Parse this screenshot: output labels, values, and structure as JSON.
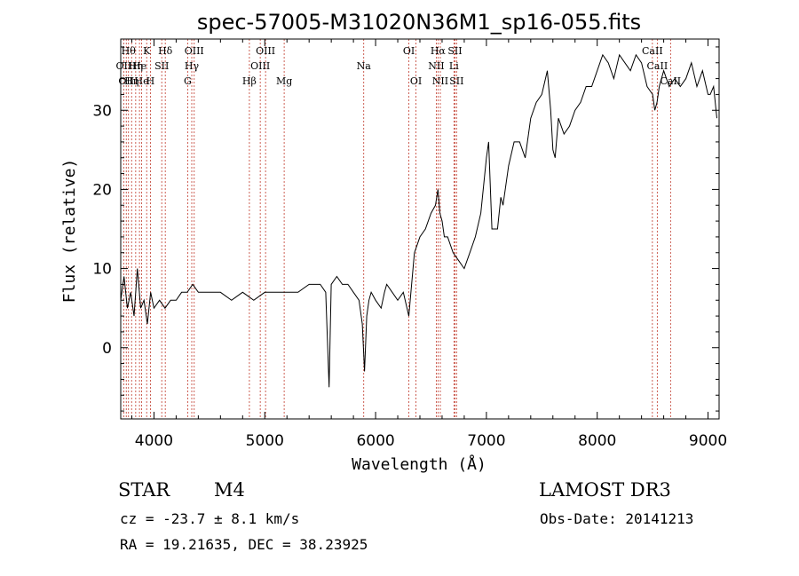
{
  "chart_data": {
    "type": "line",
    "title": "spec-57005-M31020N36M1_sp16-055.fits",
    "xlabel": "Wavelength (Å)",
    "ylabel": "Flux (relative)",
    "xlim": [
      3700,
      9100
    ],
    "ylim": [
      -9,
      39
    ],
    "xticks": [
      4000,
      5000,
      6000,
      7000,
      8000,
      9000
    ],
    "yticks": [
      0,
      10,
      20,
      30
    ],
    "grid": false,
    "series": [
      {
        "x": [
          3700,
          3730,
          3760,
          3790,
          3820,
          3850,
          3880,
          3910,
          3940,
          3970,
          4000,
          4050,
          4100,
          4150,
          4200,
          4250,
          4300,
          4350,
          4400,
          4450,
          4500,
          4600,
          4700,
          4800,
          4900,
          5000,
          5100,
          5200,
          5300,
          5400,
          5500,
          5550,
          5580,
          5600,
          5650,
          5700,
          5750,
          5800,
          5850,
          5880,
          5900,
          5920,
          5940,
          5960,
          6000,
          6050,
          6080,
          6100,
          6150,
          6200,
          6250,
          6300,
          6350,
          6400,
          6450,
          6500,
          6540,
          6563,
          6580,
          6600,
          6620,
          6650,
          6700,
          6750,
          6800,
          6850,
          6900,
          6950,
          7000,
          7020,
          7050,
          7100,
          7130,
          7150,
          7200,
          7250,
          7300,
          7350,
          7400,
          7450,
          7500,
          7550,
          7580,
          7600,
          7620,
          7650,
          7700,
          7750,
          7800,
          7850,
          7900,
          7950,
          8000,
          8050,
          8100,
          8150,
          8200,
          8250,
          8300,
          8350,
          8400,
          8450,
          8500,
          8520,
          8540,
          8560,
          8600,
          8650,
          8700,
          8750,
          8800,
          8850,
          8900,
          8950,
          9000,
          9020,
          9050,
          9080
        ],
        "y": [
          6,
          9,
          5,
          7,
          4,
          10,
          5,
          6,
          3,
          7,
          5,
          6,
          5,
          6,
          6,
          7,
          7,
          8,
          7,
          7,
          7,
          7,
          6,
          7,
          6,
          7,
          7,
          7,
          7,
          8,
          8,
          7,
          -5,
          8,
          9,
          8,
          8,
          7,
          6,
          3,
          -3,
          4,
          6,
          7,
          6,
          5,
          7,
          8,
          7,
          6,
          7,
          4,
          12,
          14,
          15,
          17,
          18,
          20,
          17,
          16,
          14,
          14,
          12,
          11,
          10,
          12,
          14,
          17,
          24,
          26,
          15,
          15,
          19,
          18,
          23,
          26,
          26,
          24,
          29,
          31,
          32,
          35,
          30,
          25,
          24,
          29,
          27,
          28,
          30,
          31,
          33,
          33,
          35,
          37,
          36,
          34,
          37,
          36,
          35,
          37,
          36,
          33,
          32,
          30,
          31,
          33,
          35,
          33,
          34,
          33,
          34,
          36,
          33,
          35,
          32,
          32,
          33,
          29
        ],
        "color": "#000000"
      }
    ],
    "line_markers": [
      {
        "x": 3727,
        "label": "OII",
        "row": 1
      },
      {
        "x": 3750,
        "label": "OII",
        "row": 2
      },
      {
        "x": 3770,
        "label": "Hθ",
        "row": 0
      },
      {
        "x": 3798,
        "label": "Hη",
        "row": 2
      },
      {
        "x": 3835,
        "label": "Hη",
        "row": 1
      },
      {
        "x": 3869,
        "label": "He",
        "row": 1
      },
      {
        "x": 3889,
        "label": "He",
        "row": 2
      },
      {
        "x": 3934,
        "label": "K",
        "row": 0
      },
      {
        "x": 3968,
        "label": "H",
        "row": 2
      },
      {
        "x": 4070,
        "label": "SII",
        "row": 1
      },
      {
        "x": 4102,
        "label": "Hδ",
        "row": 0
      },
      {
        "x": 4304,
        "label": "G",
        "row": 2
      },
      {
        "x": 4341,
        "label": "Hγ",
        "row": 1
      },
      {
        "x": 4363,
        "label": "OIII",
        "row": 0
      },
      {
        "x": 4861,
        "label": "Hβ",
        "row": 2
      },
      {
        "x": 4959,
        "label": "OIII",
        "row": 1
      },
      {
        "x": 5007,
        "label": "OIII",
        "row": 0
      },
      {
        "x": 5175,
        "label": "Mg",
        "row": 2
      },
      {
        "x": 5893,
        "label": "Na",
        "row": 1
      },
      {
        "x": 6300,
        "label": "OI",
        "row": 0
      },
      {
        "x": 6364,
        "label": "OI",
        "row": 2
      },
      {
        "x": 6548,
        "label": "NII",
        "row": 1
      },
      {
        "x": 6563,
        "label": "Hα",
        "row": 0
      },
      {
        "x": 6584,
        "label": "NII",
        "row": 2
      },
      {
        "x": 6707,
        "label": "Li",
        "row": 1
      },
      {
        "x": 6716,
        "label": "SII",
        "row": 0
      },
      {
        "x": 6731,
        "label": "SII",
        "row": 2
      },
      {
        "x": 8498,
        "label": "CaII",
        "row": 0
      },
      {
        "x": 8542,
        "label": "CaII",
        "row": 1
      },
      {
        "x": 8662,
        "label": "CaII",
        "row": 2
      }
    ]
  },
  "info": {
    "class_label": "STAR",
    "subclass": "M4",
    "survey": "LAMOST DR3",
    "cz": "cz = -23.7 ± 8.1 km/s",
    "obs_date": "Obs-Date: 20141213",
    "coords": "RA =  19.21635, DEC =  38.23925"
  }
}
